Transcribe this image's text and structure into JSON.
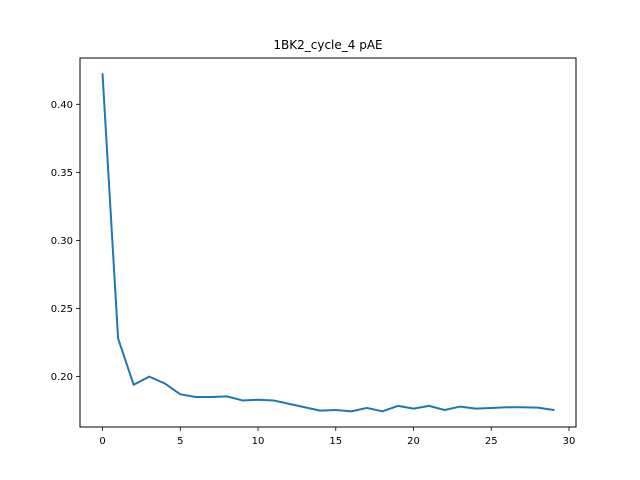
{
  "chart_data": {
    "type": "line",
    "title": "1BK2_cycle_4 pAE",
    "xlabel": "",
    "ylabel": "",
    "xlim": [
      -1.45,
      30.45
    ],
    "ylim": [
      0.163,
      0.434
    ],
    "x_ticks": [
      0,
      5,
      10,
      15,
      20,
      25,
      30
    ],
    "y_ticks": [
      0.2,
      0.25,
      0.3,
      0.35,
      0.4
    ],
    "y_tick_labels": [
      "0.20",
      "0.25",
      "0.30",
      "0.35",
      "0.40"
    ],
    "grid": false,
    "series": [
      {
        "color": "#1f77b4",
        "x": [
          0,
          1,
          2,
          3,
          4,
          5,
          6,
          7,
          8,
          9,
          10,
          11,
          12,
          13,
          14,
          15,
          16,
          17,
          18,
          19,
          20,
          21,
          22,
          23,
          24,
          25,
          26,
          27,
          28,
          29
        ],
        "y": [
          0.422,
          0.228,
          0.194,
          0.2,
          0.195,
          0.187,
          0.185,
          0.185,
          0.1855,
          0.1825,
          0.183,
          0.1825,
          0.18,
          0.1775,
          0.175,
          0.1755,
          0.1745,
          0.177,
          0.1745,
          0.1785,
          0.1765,
          0.1785,
          0.1755,
          0.178,
          0.1765,
          0.177,
          0.1775,
          0.1775,
          0.1772,
          0.1755
        ]
      }
    ]
  }
}
